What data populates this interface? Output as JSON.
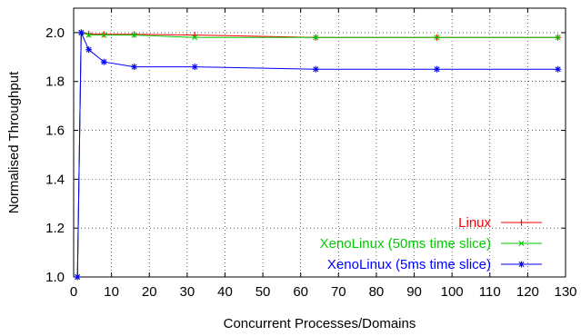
{
  "chart_data": {
    "type": "line",
    "xlabel": "Concurrent Processes/Domains",
    "ylabel": "Normalised Throughput",
    "xlim": [
      0,
      130
    ],
    "ylim": [
      1.0,
      2.1
    ],
    "xticks": [
      0,
      10,
      20,
      30,
      40,
      50,
      60,
      70,
      80,
      90,
      100,
      110,
      120,
      130
    ],
    "yticks": [
      1.0,
      1.2,
      1.4,
      1.6,
      1.8,
      2.0
    ],
    "ytick_labels": [
      "1.0",
      "1.2",
      "1.4",
      "1.6",
      "1.8",
      "2.0"
    ],
    "grid": true,
    "legend_position": "bottom-right",
    "series": [
      {
        "name": "Linux",
        "color": "#ff0000",
        "marker": "plus",
        "x": [
          1,
          2,
          4,
          8,
          16,
          32,
          64,
          96,
          128
        ],
        "y": [
          1.0,
          2.0,
          1.995,
          1.993,
          1.993,
          1.99,
          1.98,
          1.98,
          1.98
        ]
      },
      {
        "name": "XenoLinux (50ms time slice)",
        "color": "#00cc00",
        "marker": "x",
        "x": [
          1,
          2,
          4,
          8,
          16,
          32,
          64,
          96,
          128
        ],
        "y": [
          1.0,
          2.0,
          1.99,
          1.99,
          1.99,
          1.98,
          1.98,
          1.98,
          1.98
        ]
      },
      {
        "name": "XenoLinux (5ms time slice)",
        "color": "#0000ff",
        "marker": "star",
        "x": [
          1,
          2,
          4,
          8,
          16,
          32,
          64,
          96,
          128
        ],
        "y": [
          1.0,
          2.0,
          1.93,
          1.88,
          1.86,
          1.86,
          1.85,
          1.85,
          1.85
        ]
      }
    ]
  }
}
